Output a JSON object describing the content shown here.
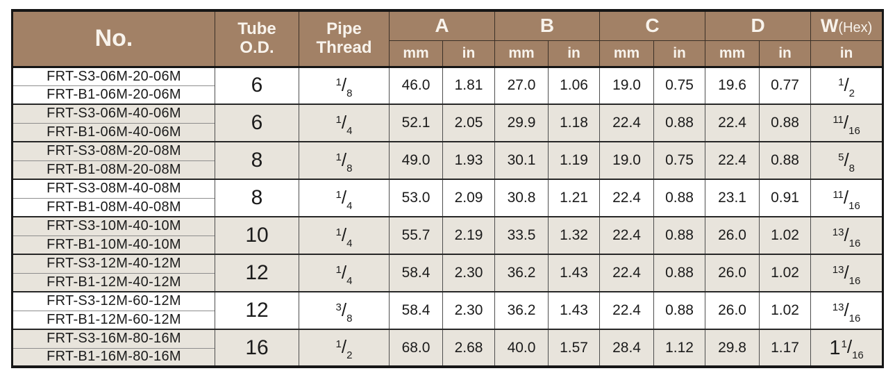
{
  "table": {
    "colors": {
      "header_bg": "#a28166",
      "header_text": "#f8f3ec",
      "row_white": "#ffffff",
      "row_shaded": "#e8e4dc",
      "outer_border": "#161616",
      "grid_line": "#4d4d4d"
    },
    "header": {
      "no": "No.",
      "tube_od_line1": "Tube",
      "tube_od_line2": "O.D.",
      "pipe_thread_line1": "Pipe",
      "pipe_thread_line2": "Thread",
      "group_a": "A",
      "group_b": "B",
      "group_c": "C",
      "group_d": "D",
      "w_label": "W",
      "w_suffix": "(Hex)",
      "unit_mm_a": "mm",
      "unit_in_a": "in",
      "unit_mm_b": "mm",
      "unit_in_b": "in",
      "unit_mm_c": "mm",
      "unit_in_c": "in",
      "unit_mm_d": "mm",
      "unit_in_d": "in",
      "unit_in_w": "in"
    },
    "rows": [
      {
        "part_numbers": [
          "FRT-S3-06M-20-06M",
          "FRT-B1-06M-20-06M"
        ],
        "tube_od": "6",
        "pipe_thread": {
          "whole": "",
          "num": "1",
          "den": "8"
        },
        "a_mm": "46.0",
        "a_in": "1.81",
        "b_mm": "27.0",
        "b_in": "1.06",
        "c_mm": "19.0",
        "c_in": "0.75",
        "d_mm": "19.6",
        "d_in": "0.77",
        "w_hex": {
          "whole": "",
          "num": "1",
          "den": "2"
        },
        "shaded": false
      },
      {
        "part_numbers": [
          "FRT-S3-06M-40-06M",
          "FRT-B1-06M-40-06M"
        ],
        "tube_od": "6",
        "pipe_thread": {
          "whole": "",
          "num": "1",
          "den": "4"
        },
        "a_mm": "52.1",
        "a_in": "2.05",
        "b_mm": "29.9",
        "b_in": "1.18",
        "c_mm": "22.4",
        "c_in": "0.88",
        "d_mm": "22.4",
        "d_in": "0.88",
        "w_hex": {
          "whole": "",
          "num": "11",
          "den": "16"
        },
        "shaded": true
      },
      {
        "part_numbers": [
          "FRT-S3-08M-20-08M",
          "FRT-B1-08M-20-08M"
        ],
        "tube_od": "8",
        "pipe_thread": {
          "whole": "",
          "num": "1",
          "den": "8"
        },
        "a_mm": "49.0",
        "a_in": "1.93",
        "b_mm": "30.1",
        "b_in": "1.19",
        "c_mm": "19.0",
        "c_in": "0.75",
        "d_mm": "22.4",
        "d_in": "0.88",
        "w_hex": {
          "whole": "",
          "num": "5",
          "den": "8"
        },
        "shaded": true
      },
      {
        "part_numbers": [
          "FRT-S3-08M-40-08M",
          "FRT-B1-08M-40-08M"
        ],
        "tube_od": "8",
        "pipe_thread": {
          "whole": "",
          "num": "1",
          "den": "4"
        },
        "a_mm": "53.0",
        "a_in": "2.09",
        "b_mm": "30.8",
        "b_in": "1.21",
        "c_mm": "22.4",
        "c_in": "0.88",
        "d_mm": "23.1",
        "d_in": "0.91",
        "w_hex": {
          "whole": "",
          "num": "11",
          "den": "16"
        },
        "shaded": false
      },
      {
        "part_numbers": [
          "FRT-S3-10M-40-10M",
          "FRT-B1-10M-40-10M"
        ],
        "tube_od": "10",
        "pipe_thread": {
          "whole": "",
          "num": "1",
          "den": "4"
        },
        "a_mm": "55.7",
        "a_in": "2.19",
        "b_mm": "33.5",
        "b_in": "1.32",
        "c_mm": "22.4",
        "c_in": "0.88",
        "d_mm": "26.0",
        "d_in": "1.02",
        "w_hex": {
          "whole": "",
          "num": "13",
          "den": "16"
        },
        "shaded": true
      },
      {
        "part_numbers": [
          "FRT-S3-12M-40-12M",
          "FRT-B1-12M-40-12M"
        ],
        "tube_od": "12",
        "pipe_thread": {
          "whole": "",
          "num": "1",
          "den": "4"
        },
        "a_mm": "58.4",
        "a_in": "2.30",
        "b_mm": "36.2",
        "b_in": "1.43",
        "c_mm": "22.4",
        "c_in": "0.88",
        "d_mm": "26.0",
        "d_in": "1.02",
        "w_hex": {
          "whole": "",
          "num": "13",
          "den": "16"
        },
        "shaded": true
      },
      {
        "part_numbers": [
          "FRT-S3-12M-60-12M",
          "FRT-B1-12M-60-12M"
        ],
        "tube_od": "12",
        "pipe_thread": {
          "whole": "",
          "num": "3",
          "den": "8"
        },
        "a_mm": "58.4",
        "a_in": "2.30",
        "b_mm": "36.2",
        "b_in": "1.43",
        "c_mm": "22.4",
        "c_in": "0.88",
        "d_mm": "26.0",
        "d_in": "1.02",
        "w_hex": {
          "whole": "",
          "num": "13",
          "den": "16"
        },
        "shaded": false
      },
      {
        "part_numbers": [
          "FRT-S3-16M-80-16M",
          "FRT-B1-16M-80-16M"
        ],
        "tube_od": "16",
        "pipe_thread": {
          "whole": "",
          "num": "1",
          "den": "2"
        },
        "a_mm": "68.0",
        "a_in": "2.68",
        "b_mm": "40.0",
        "b_in": "1.57",
        "c_mm": "28.4",
        "c_in": "1.12",
        "d_mm": "29.8",
        "d_in": "1.17",
        "w_hex": {
          "whole": "1",
          "num": "1",
          "den": "16"
        },
        "shaded": true
      }
    ]
  }
}
